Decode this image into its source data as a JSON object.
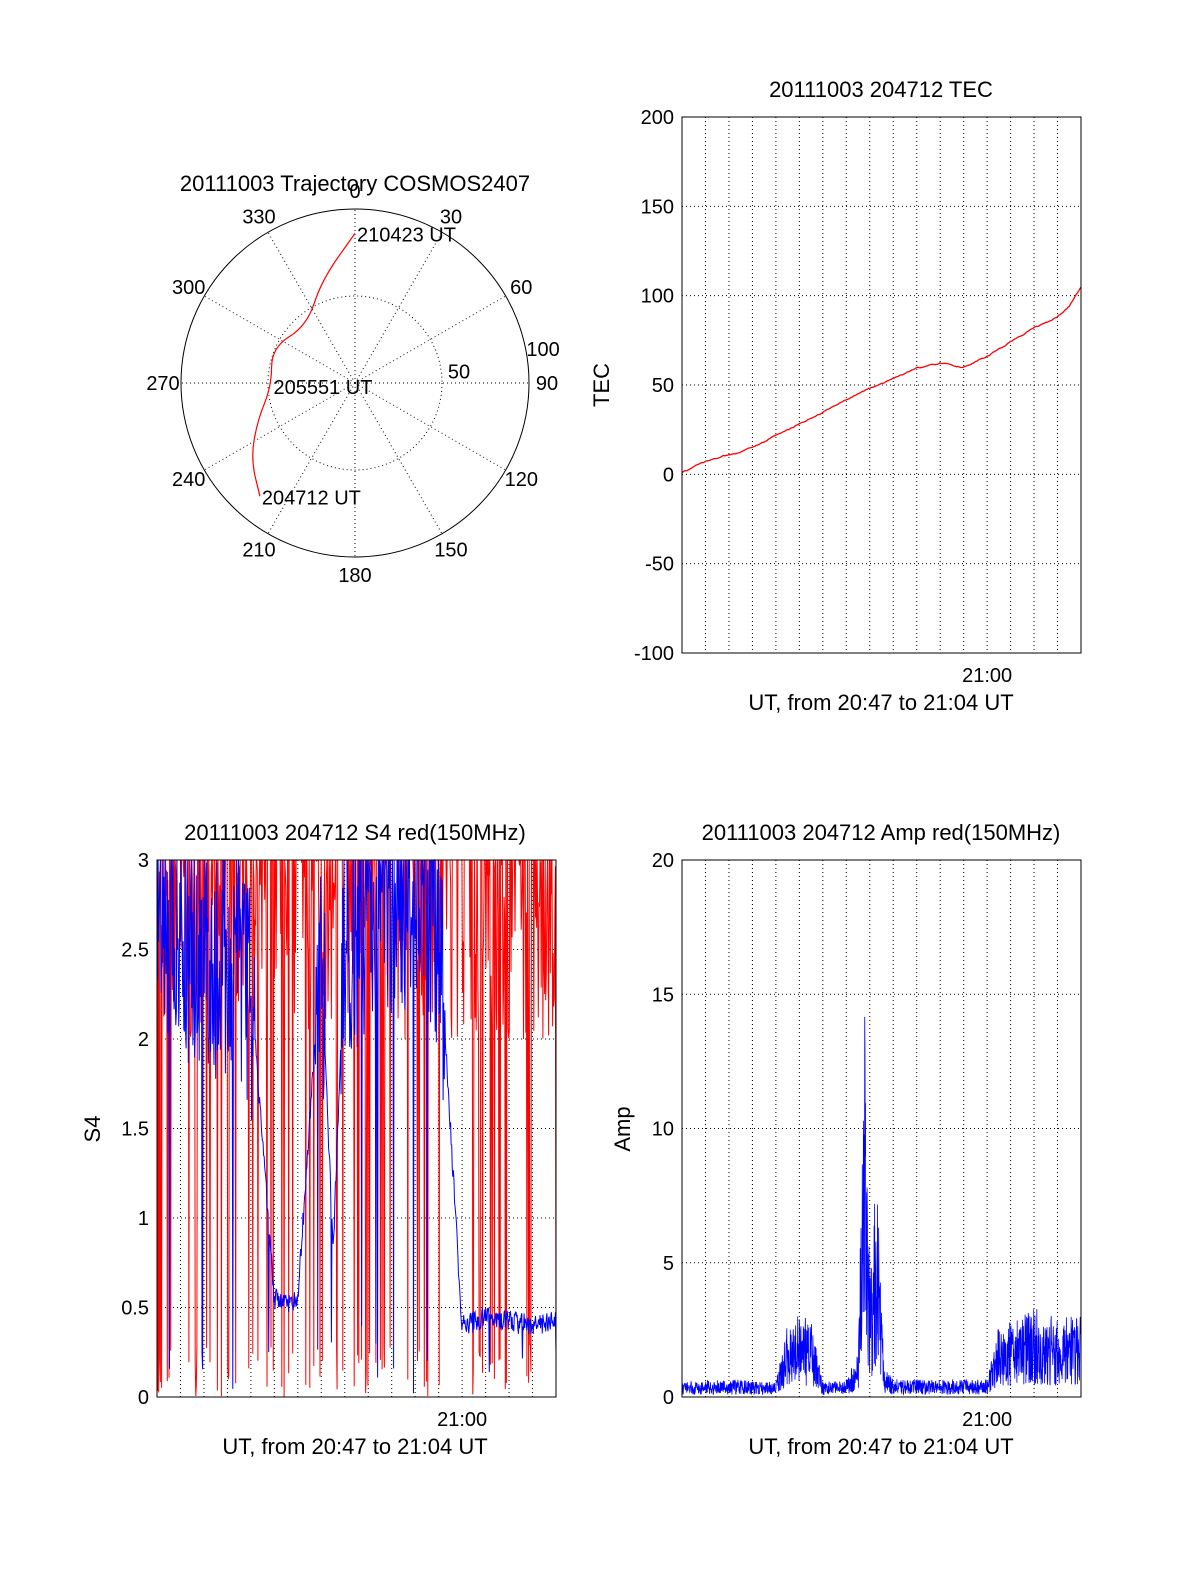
{
  "chart_data": [
    {
      "id": "trajectory",
      "type": "polar",
      "title": "20111003 Trajectory COSMOS2407",
      "azimuth_labels": [
        "0",
        "30",
        "60",
        "90",
        "120",
        "150",
        "180",
        "210",
        "240",
        "270",
        "300",
        "330"
      ],
      "zenith_labels": [
        "50",
        "100"
      ],
      "zenith_max": 100,
      "grid": true,
      "series": [
        {
          "color": "#ff0000",
          "points": [
            {
              "az": 0,
              "zen": 86
            },
            {
              "az": 342,
              "zen": 62
            },
            {
              "az": 320,
              "zen": 43
            },
            {
              "az": 293,
              "zen": 52
            },
            {
              "az": 268,
              "zen": 48
            },
            {
              "az": 249,
              "zen": 60
            },
            {
              "az": 234,
              "zen": 74
            },
            {
              "az": 220,
              "zen": 85
            }
          ]
        }
      ],
      "annotations": [
        {
          "text": "210423 UT",
          "az": 0,
          "zen": 86
        },
        {
          "text": "205551 UT",
          "az": 268,
          "zen": 48
        },
        {
          "text": "204712 UT",
          "az": 220,
          "zen": 85
        }
      ]
    },
    {
      "id": "tec",
      "type": "line",
      "title": "20111003 204712 TEC",
      "xlabel": "UT, from 20:47 to 21:04 UT",
      "ylabel": "TEC",
      "ylim": [
        -100,
        200
      ],
      "yticks": [
        -100,
        -50,
        0,
        50,
        100,
        150,
        200
      ],
      "xlim": [
        0,
        17
      ],
      "xticks": [
        {
          "value": 13,
          "label": "21:00"
        }
      ],
      "grid": true,
      "series": [
        {
          "color": "#ff0000",
          "x": [
            0,
            1,
            2,
            3,
            4,
            5,
            6,
            7,
            8,
            9,
            10,
            11,
            12,
            13,
            14,
            15,
            16,
            16.5,
            17
          ],
          "y": [
            1,
            7,
            11,
            15,
            22,
            28,
            35,
            42,
            48,
            54,
            59,
            62,
            60,
            66,
            74,
            82,
            88,
            94,
            105
          ]
        }
      ]
    },
    {
      "id": "s4",
      "type": "line",
      "title": "20111003 204712 S4 red(150MHz)",
      "xlabel": "UT, from 20:47 to 21:04 UT",
      "ylabel": "S4",
      "ylim": [
        0,
        3
      ],
      "yticks": [
        {
          "value": 0,
          "label": "0"
        },
        {
          "value": 0.5,
          "label": "0.5"
        },
        {
          "value": 1,
          "label": "1"
        },
        {
          "value": 1.5,
          "label": "1.5"
        },
        {
          "value": 2,
          "label": "2"
        },
        {
          "value": 2.5,
          "label": "2.5"
        },
        {
          "value": 3,
          "label": "3"
        }
      ],
      "xlim": [
        0,
        17
      ],
      "xticks": [
        {
          "value": 13,
          "label": "21:00"
        }
      ],
      "grid": true,
      "series": [
        {
          "color": "#ff0000",
          "x": [
            0,
            1,
            2,
            3,
            4,
            5,
            6,
            7,
            8,
            9,
            10,
            11,
            12,
            13,
            14,
            15,
            16,
            17
          ],
          "y": [
            3,
            2.9,
            3,
            2.6,
            3,
            0.05,
            0.05,
            2.4,
            0.1,
            3,
            0.05,
            3,
            0.05,
            0.1,
            3,
            0.05,
            3,
            2.5
          ]
        },
        {
          "color": "#0000ff",
          "x": [
            0,
            1,
            2,
            3,
            4,
            5,
            5.5,
            6,
            7,
            7.5,
            8,
            9,
            10,
            11,
            12,
            13,
            13.5,
            14,
            15,
            16,
            17
          ],
          "y": [
            2.8,
            2.6,
            2.4,
            2.5,
            2.3,
            0.55,
            0.52,
            0.55,
            2.5,
            0.8,
            2.6,
            2.7,
            2.8,
            2.9,
            2.6,
            0.4,
            0.42,
            0.45,
            0.42,
            0.4,
            0.42
          ]
        }
      ]
    },
    {
      "id": "amp",
      "type": "line",
      "title": "20111003 204712 Amp red(150MHz)",
      "xlabel": "UT, from 20:47 to 21:04 UT",
      "ylabel": "Amp",
      "ylim": [
        0,
        20
      ],
      "yticks": [
        {
          "value": 0,
          "label": "0"
        },
        {
          "value": 5,
          "label": "5"
        },
        {
          "value": 10,
          "label": "10"
        },
        {
          "value": 15,
          "label": "15"
        },
        {
          "value": 20,
          "label": "20"
        }
      ],
      "xlim": [
        0,
        17
      ],
      "xticks": [
        {
          "value": 13,
          "label": "21:00"
        }
      ],
      "grid": true,
      "series": [
        {
          "color": "#0000ff",
          "x": [
            0,
            2,
            4,
            4.5,
            5,
            5.5,
            6,
            7,
            7.5,
            7.8,
            8,
            8.3,
            8.6,
            9,
            10,
            11,
            12,
            13,
            13.6,
            14,
            15,
            16,
            17
          ],
          "y": [
            0.5,
            0.6,
            0.5,
            2.5,
            2.8,
            2.6,
            0.5,
            0.6,
            1.5,
            14.5,
            4,
            7.8,
            1,
            0.6,
            0.6,
            0.6,
            0.6,
            0.6,
            2.8,
            2.5,
            3,
            2.8,
            2.7
          ]
        }
      ]
    }
  ]
}
